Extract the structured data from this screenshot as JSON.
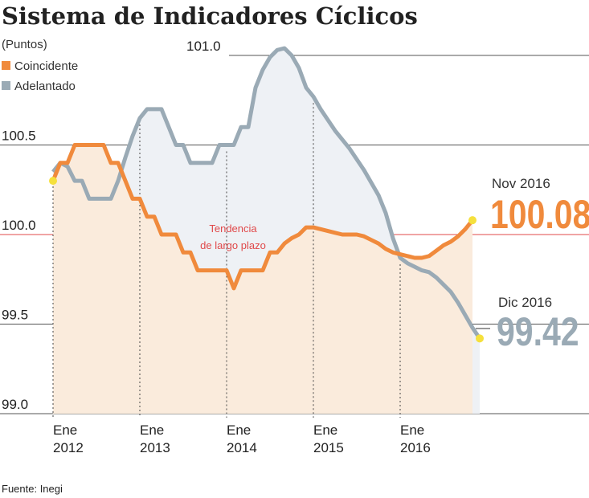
{
  "chart_data": {
    "type": "line",
    "title": "Sistema de Indicadores Cíclicos",
    "ylabel": "(Puntos)",
    "ylim": [
      99.0,
      101.0
    ],
    "yticks": [
      "99.0",
      "99.5",
      "100.0",
      "100.5",
      "101.0"
    ],
    "xticks": [
      {
        "month": "Ene",
        "year": "2012"
      },
      {
        "month": "Ene",
        "year": "2013"
      },
      {
        "month": "Ene",
        "year": "2014"
      },
      {
        "month": "Ene",
        "year": "2015"
      },
      {
        "month": "Ene",
        "year": "2016"
      }
    ],
    "x_start": "Ene 2012",
    "x_step": "monthly",
    "legend_position": "top-left",
    "series": [
      {
        "name": "Coincidente",
        "color": "#f08a3c",
        "values": [
          100.3,
          100.4,
          100.4,
          100.5,
          100.5,
          100.5,
          100.5,
          100.5,
          100.4,
          100.4,
          100.3,
          100.2,
          100.2,
          100.1,
          100.1,
          100.0,
          100.0,
          100.0,
          99.9,
          99.9,
          99.8,
          99.8,
          99.8,
          99.8,
          99.8,
          99.7,
          99.8,
          99.8,
          99.8,
          99.8,
          99.9,
          99.9,
          99.95,
          99.98,
          100.0,
          100.04,
          100.04,
          100.03,
          100.02,
          100.01,
          100.0,
          100.0,
          100.0,
          99.99,
          99.97,
          99.95,
          99.92,
          99.9,
          99.89,
          99.88,
          99.87,
          99.87,
          99.88,
          99.91,
          99.94,
          99.96,
          99.99,
          100.03,
          100.08
        ]
      },
      {
        "name": "Adelantado",
        "color": "#9aaab5",
        "values": [
          100.35,
          100.4,
          100.38,
          100.3,
          100.3,
          100.2,
          100.2,
          100.2,
          100.2,
          100.3,
          100.43,
          100.55,
          100.65,
          100.7,
          100.7,
          100.7,
          100.6,
          100.5,
          100.5,
          100.4,
          100.4,
          100.4,
          100.4,
          100.5,
          100.5,
          100.5,
          100.6,
          100.6,
          100.82,
          100.92,
          100.99,
          101.03,
          101.04,
          101.0,
          100.93,
          100.82,
          100.77,
          100.7,
          100.64,
          100.58,
          100.53,
          100.48,
          100.42,
          100.36,
          100.29,
          100.22,
          100.12,
          99.98,
          99.87,
          99.84,
          99.82,
          99.8,
          99.79,
          99.76,
          99.72,
          99.68,
          99.62,
          99.55,
          99.48,
          99.42
        ]
      }
    ],
    "reference_line": {
      "value": 100.0,
      "label_line1": "Tendencia",
      "label_line2": "de largo plazo",
      "color": "#e0494a"
    },
    "annotations": [
      {
        "label": "Nov 2016",
        "value": "100.08",
        "color": "#f08a3c"
      },
      {
        "label": "Dic 2016",
        "value": "99.42",
        "color": "#9aaab5"
      }
    ],
    "source": "Fuente: Inegi"
  }
}
